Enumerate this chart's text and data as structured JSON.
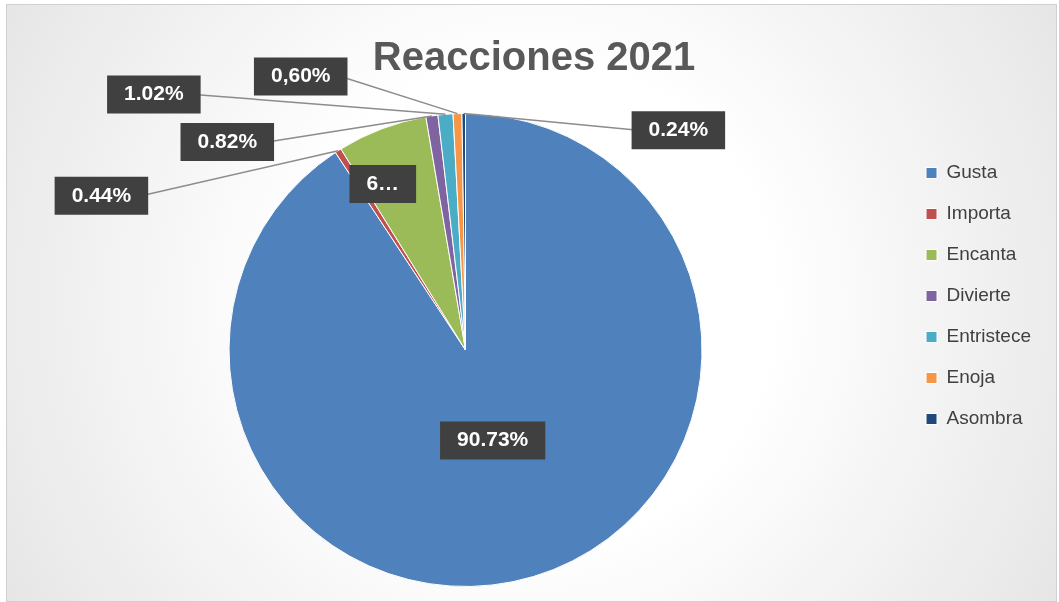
{
  "chart_data": {
    "type": "pie",
    "title": "Reacciones 2021",
    "categories": [
      "Gusta",
      "Importa",
      "Encanta",
      "Divierte",
      "Entristece",
      "Enoja",
      "Asombra"
    ],
    "values": [
      90.73,
      0.44,
      6.15,
      0.82,
      1.02,
      0.6,
      0.24
    ],
    "colors": [
      "#4f81bd",
      "#c0504d",
      "#9bbb59",
      "#8064a2",
      "#4bacc6",
      "#f79646",
      "#1f497d"
    ],
    "value_labels": [
      "90.73%",
      "0.44%",
      "6…",
      "0.82%",
      "1.02%",
      "0,60%",
      "0.24%"
    ],
    "legend": "right"
  }
}
